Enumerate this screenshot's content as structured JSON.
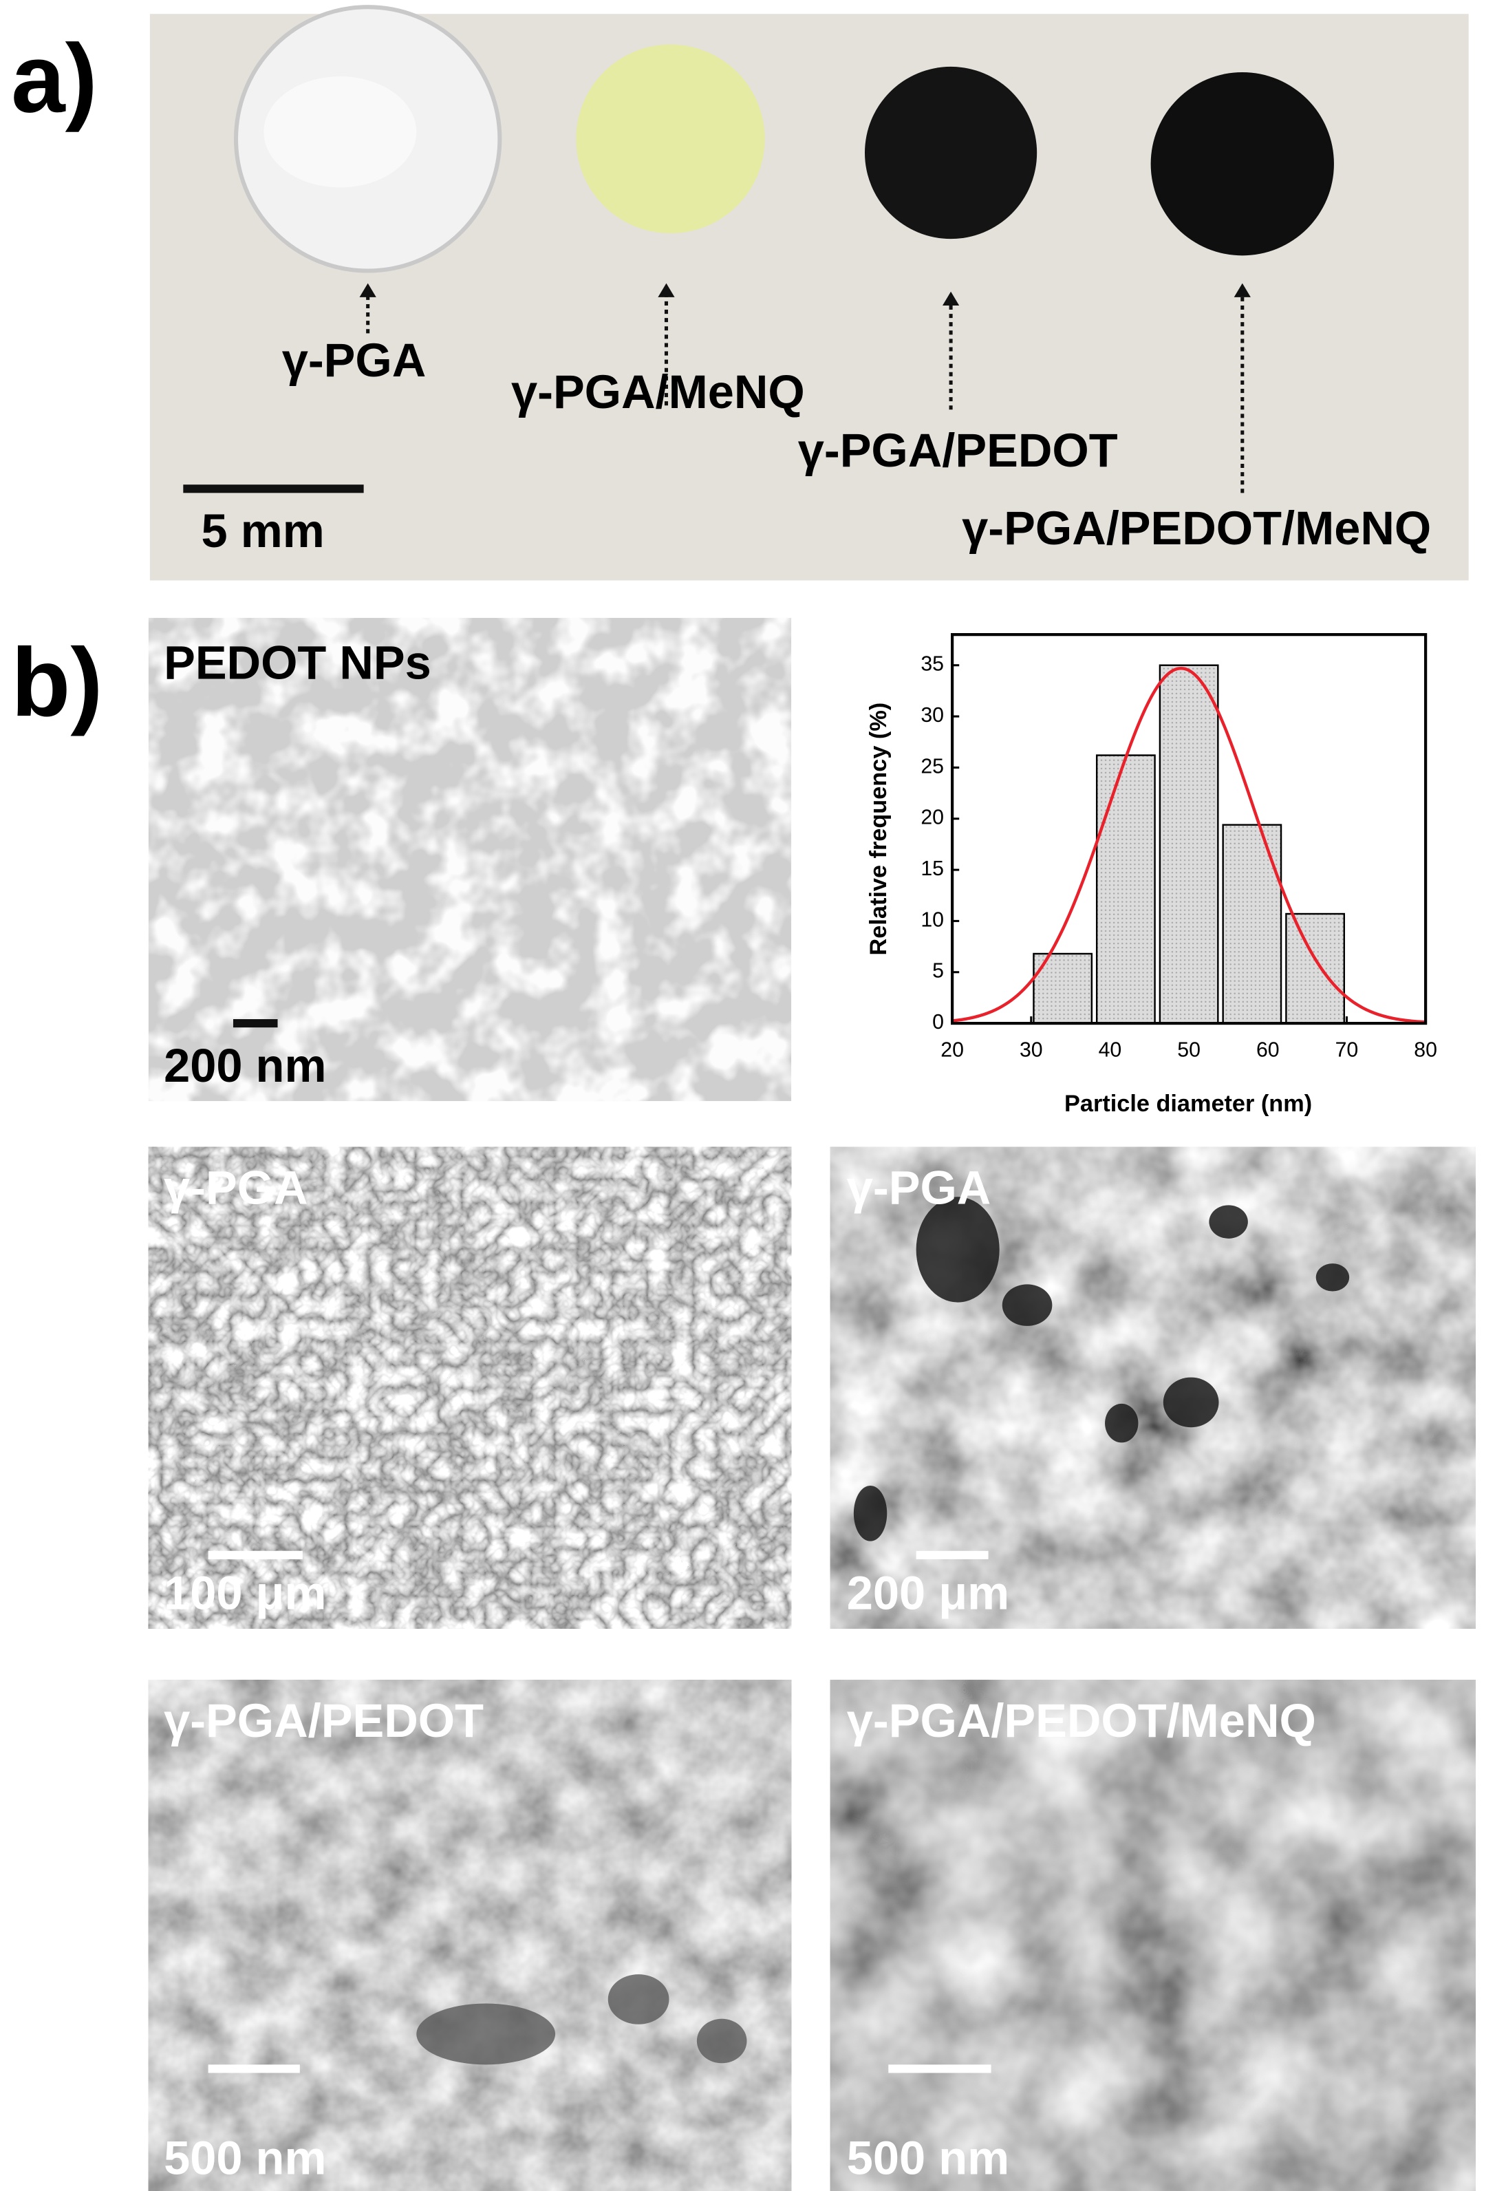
{
  "panel_a": {
    "label": "a)",
    "samples": [
      "γ-PGA",
      "γ-PGA/MeNQ",
      "γ-PGA/PEDOT",
      "γ-PGA/PEDOT/MeNQ"
    ],
    "scale_bar": "5 mm"
  },
  "panel_b": {
    "label": "b)",
    "images": [
      {
        "title": "PEDOT NPs",
        "scale_bar": "200 nm"
      },
      {
        "title": "γ-PGA",
        "scale_bar": "100 μm"
      },
      {
        "title": "γ-PGA",
        "scale_bar": "200 μm"
      },
      {
        "title": "γ-PGA/PEDOT",
        "scale_bar": "500 nm"
      },
      {
        "title": "γ-PGA/PEDOT/MeNQ",
        "scale_bar": "500 nm"
      }
    ]
  },
  "chart_data": {
    "type": "histogram",
    "x_label": "Particle diameter (nm)",
    "y_label": "Relative frequency (%)",
    "bins": [
      30,
      38,
      46,
      54,
      62,
      70
    ],
    "values": [
      6.8,
      26.2,
      35,
      19.4,
      10.7
    ],
    "color": "#d9d9d9",
    "fit": {
      "mean": 49,
      "sigma": 9.2,
      "peak": 34.7,
      "color": "#e8212b"
    },
    "xlim": [
      20,
      80
    ],
    "xticks": [
      20,
      30,
      40,
      50,
      60,
      70,
      80
    ],
    "ylim": [
      0,
      38
    ],
    "yticks": [
      0,
      5,
      10,
      15,
      20,
      25,
      30,
      35
    ]
  }
}
